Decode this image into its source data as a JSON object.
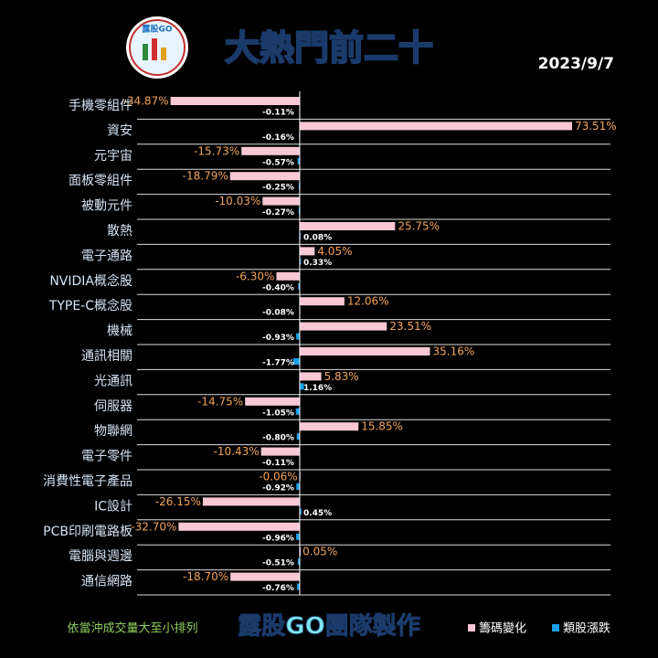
{
  "chart_data": {
    "type": "hbar",
    "title": "大熱門前二十",
    "date": "2023/9/7",
    "logo_text": "露股GO",
    "note": "依當沖成交量大至小排列",
    "credit": "露股GO團隊製作",
    "categories": [
      "手機零組件",
      "資安",
      "元宇宙",
      "面板零組件",
      "被動元件",
      "散熱",
      "電子通路",
      "NVIDIA概念股",
      "TYPE-C概念股",
      "機械",
      "通訊相關",
      "光通訊",
      "伺服器",
      "物聯網",
      "電子零件",
      "消費性電子產品",
      "IC設計",
      "PCB印刷電路板",
      "電腦與週邊",
      "通信網路"
    ],
    "series": [
      {
        "name": "籌碼變化",
        "color": "#f8c8d4",
        "values": [
          -34.87,
          73.51,
          -15.73,
          -18.79,
          -10.03,
          25.75,
          4.05,
          -6.3,
          12.06,
          23.51,
          35.16,
          5.83,
          -14.75,
          15.85,
          -10.43,
          -0.06,
          -26.15,
          -32.7,
          0.05,
          -18.7
        ],
        "value_labels": [
          "-34.87%",
          "73.51%",
          "-15.73%",
          "-18.79%",
          "-10.03%",
          "25.75%",
          "4.05%",
          "-6.30%",
          "12.06%",
          "23.51%",
          "35.16%",
          "5.83%",
          "-14.75%",
          "15.85%",
          "-10.43%",
          "-0.06%",
          "-26.15%",
          "-32.70%",
          "0.05%",
          "-18.70%"
        ]
      },
      {
        "name": "類股漲跌",
        "color": "#1aa0e8",
        "values": [
          -0.11,
          -0.16,
          -0.57,
          -0.25,
          -0.27,
          0.08,
          0.33,
          -0.4,
          -0.08,
          -0.93,
          -1.77,
          1.16,
          -1.05,
          -0.8,
          -0.11,
          -0.92,
          0.45,
          -0.96,
          -0.51,
          -0.76
        ],
        "value_labels": [
          "-0.11%",
          "-0.16%",
          "-0.57%",
          "-0.25%",
          "-0.27%",
          "0.08%",
          "0.33%",
          "-0.40%",
          "-0.08%",
          "-0.93%",
          "-1.77%",
          "1.16%",
          "-1.05%",
          "-0.80%",
          "-0.11%",
          "-0.92%",
          "0.45%",
          "-0.96%",
          "-0.51%",
          "-0.76%"
        ]
      }
    ],
    "xlim": [
      -36,
      75
    ]
  }
}
